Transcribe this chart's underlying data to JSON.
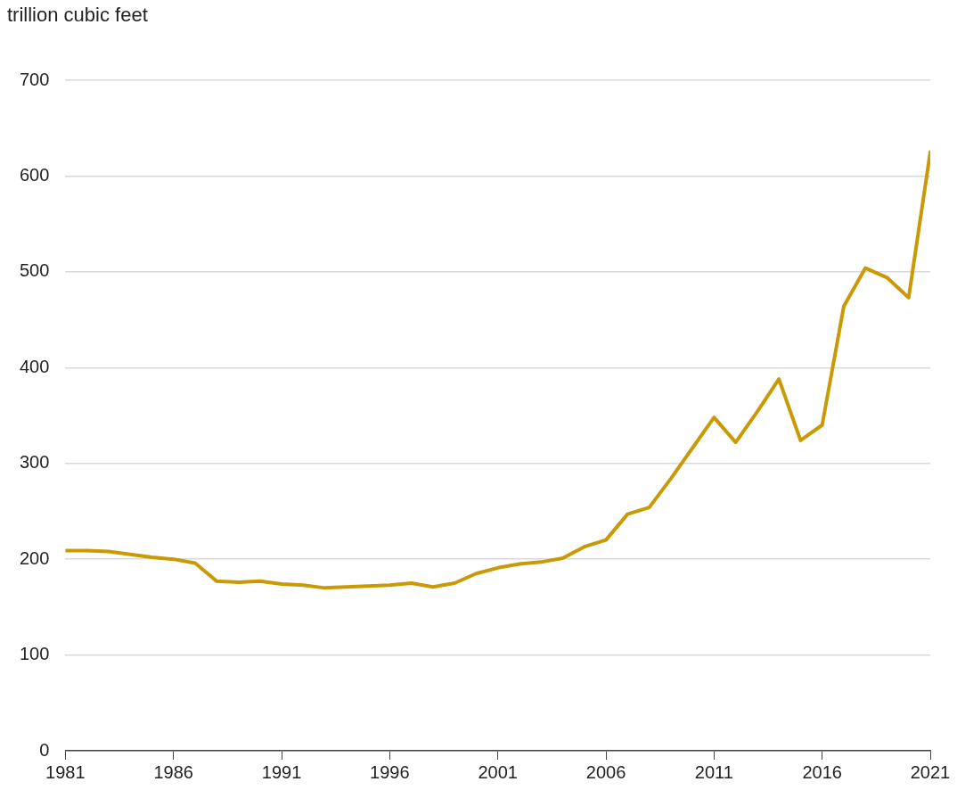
{
  "chart_data": {
    "type": "line",
    "ylabel": "trillion cubic feet",
    "x": [
      1981,
      1982,
      1983,
      1984,
      1985,
      1986,
      1987,
      1988,
      1989,
      1990,
      1991,
      1992,
      1993,
      1994,
      1995,
      1996,
      1997,
      1998,
      1999,
      2000,
      2001,
      2002,
      2003,
      2004,
      2005,
      2006,
      2007,
      2008,
      2009,
      2010,
      2011,
      2012,
      2013,
      2014,
      2015,
      2016,
      2017,
      2018,
      2019,
      2020,
      2021
    ],
    "series": [
      {
        "color": "#c99a06",
        "values": [
          209,
          209,
          208,
          205,
          202,
          200,
          196,
          177,
          176,
          177,
          174,
          173,
          170,
          171,
          172,
          173,
          175,
          171,
          175,
          185,
          191,
          195,
          197,
          201,
          213,
          220,
          247,
          254,
          284,
          316,
          348,
          322,
          354,
          388,
          324,
          340,
          464,
          504,
          494,
          473,
          625
        ]
      }
    ],
    "xlim": [
      1981,
      2021
    ],
    "xticks": [
      1981,
      1986,
      1991,
      1996,
      2001,
      2006,
      2011,
      2016,
      2021
    ],
    "ylim": [
      0,
      700
    ],
    "yticks": [
      0,
      100,
      200,
      300,
      400,
      500,
      600,
      700
    ],
    "grid": "y",
    "legend": false,
    "marker": "none",
    "line_style": "solid"
  }
}
